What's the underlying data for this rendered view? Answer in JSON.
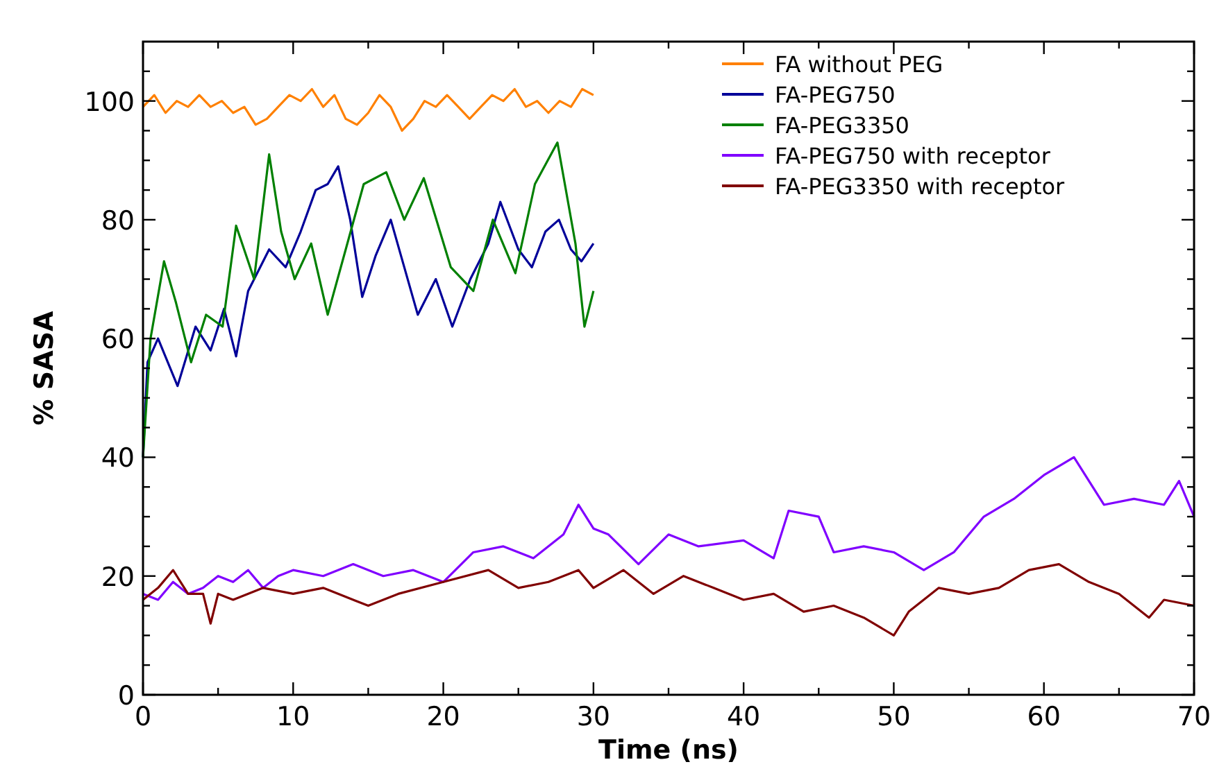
{
  "chart_data": {
    "type": "line",
    "xlabel": "Time (ns)",
    "ylabel": "% SASA",
    "xlim": [
      0,
      70
    ],
    "ylim": [
      0,
      110
    ],
    "xticks": [
      0,
      {
        "value": 5,
        "label": null
      },
      10,
      {
        "value": 15,
        "label": null
      },
      20,
      {
        "value": 25,
        "label": null
      },
      30,
      {
        "value": 35,
        "label": null
      },
      40,
      {
        "value": 45,
        "label": null
      },
      50,
      {
        "value": 55,
        "label": null
      },
      60,
      {
        "value": 65,
        "label": null
      },
      70
    ],
    "yticks": [
      0,
      {
        "value": 5,
        "label": null
      },
      {
        "value": 10,
        "label": null
      },
      {
        "value": 15,
        "label": null
      },
      20,
      {
        "value": 25,
        "label": null
      },
      {
        "value": 30,
        "label": null
      },
      {
        "value": 35,
        "label": null
      },
      40,
      {
        "value": 45,
        "label": null
      },
      {
        "value": 50,
        "label": null
      },
      {
        "value": 55,
        "label": null
      },
      60,
      {
        "value": 65,
        "label": null
      },
      {
        "value": 70,
        "label": null
      },
      {
        "value": 75,
        "label": null
      },
      80,
      {
        "value": 85,
        "label": null
      },
      {
        "value": 90,
        "label": null
      },
      {
        "value": 95,
        "label": null
      },
      100,
      {
        "value": 105,
        "label": null
      }
    ],
    "legend": "top right",
    "grid": false,
    "line_style": "solid",
    "series": [
      {
        "name": "FA without PEG",
        "color": "#ff8000",
        "x": [
          0,
          0.75,
          1.5,
          2.25,
          3,
          3.75,
          4.5,
          5.25,
          6,
          6.75,
          7.5,
          8.25,
          9,
          9.75,
          10.5,
          11.25,
          12,
          12.75,
          13.5,
          14.25,
          15,
          15.75,
          16.5,
          17.25,
          18,
          18.75,
          19.5,
          20.25,
          21,
          21.75,
          22.5,
          23.25,
          24,
          24.75,
          25.5,
          26.25,
          27,
          27.75,
          28.5,
          29.25,
          30
        ],
        "values": [
          99,
          101,
          98,
          100,
          99,
          101,
          99,
          100,
          98,
          99,
          96,
          97,
          99,
          101,
          100,
          102,
          99,
          101,
          97,
          96,
          98,
          101,
          99,
          95,
          97,
          100,
          99,
          101,
          99,
          97,
          99,
          101,
          100,
          102,
          99,
          100,
          98,
          100,
          99,
          102,
          101
        ]
      },
      {
        "name": "FA-PEG750",
        "color": "#000099",
        "x": [
          0,
          0.3,
          1,
          2.3,
          3.5,
          4.5,
          5.4,
          6.2,
          7,
          8.4,
          9.5,
          10.5,
          11.5,
          12.3,
          13,
          13.8,
          14.6,
          15.5,
          16.5,
          17.4,
          18.3,
          19.5,
          20.6,
          21.8,
          23,
          23.8,
          25,
          25.9,
          26.8,
          27.7,
          28.5,
          29.2,
          30
        ],
        "values": [
          40,
          56,
          60,
          52,
          62,
          58,
          65,
          57,
          68,
          75,
          72,
          78,
          85,
          86,
          89,
          80,
          67,
          74,
          80,
          72,
          64,
          70,
          62,
          70,
          76,
          83,
          75,
          72,
          78,
          80,
          75,
          73,
          76
        ]
      },
      {
        "name": "FA-PEG3350",
        "color": "#008000",
        "x": [
          0,
          0.5,
          1.4,
          2.2,
          3.2,
          4.2,
          5.3,
          6.2,
          7.4,
          8.4,
          9.2,
          10.1,
          11.2,
          12.3,
          13.5,
          14.7,
          16.2,
          17.4,
          18.7,
          20.5,
          22,
          23.3,
          24.8,
          26.1,
          27.6,
          28.8,
          29.4,
          30
        ],
        "values": [
          40,
          60,
          73,
          66,
          56,
          64,
          62,
          79,
          70,
          91,
          78,
          70,
          76,
          64,
          75,
          86,
          88,
          80,
          87,
          72,
          68,
          80,
          71,
          86,
          93,
          76,
          62,
          68
        ]
      },
      {
        "name": "FA-PEG750 with receptor",
        "color": "#8000ff",
        "x": [
          0,
          1,
          2,
          3,
          4,
          5,
          6,
          7,
          8,
          9,
          10,
          12,
          14,
          16,
          18,
          20,
          22,
          24,
          26,
          28,
          29,
          30,
          31,
          33,
          35,
          37,
          40,
          42,
          43,
          45,
          46,
          48,
          50,
          52,
          54,
          56,
          58,
          60,
          62,
          64,
          66,
          68,
          69,
          70
        ],
        "values": [
          17,
          16,
          19,
          17,
          18,
          20,
          19,
          21,
          18,
          20,
          21,
          20,
          22,
          20,
          21,
          19,
          24,
          25,
          23,
          27,
          32,
          28,
          27,
          22,
          27,
          25,
          26,
          23,
          31,
          30,
          24,
          25,
          24,
          21,
          24,
          30,
          33,
          37,
          40,
          32,
          33,
          32,
          36,
          30
        ]
      },
      {
        "name": "FA-PEG3350 with receptor",
        "color": "#800000",
        "x": [
          0,
          1,
          2,
          3,
          4,
          4.5,
          5,
          6,
          8,
          10,
          12,
          15,
          17,
          20,
          23,
          25,
          27,
          29,
          30,
          32,
          34,
          36,
          38,
          40,
          42,
          44,
          46,
          48,
          50,
          51,
          53,
          55,
          57,
          59,
          61,
          63,
          65,
          67,
          68,
          70
        ],
        "values": [
          16,
          18,
          21,
          17,
          17,
          12,
          17,
          16,
          18,
          17,
          18,
          15,
          17,
          19,
          21,
          18,
          19,
          21,
          18,
          21,
          17,
          20,
          18,
          16,
          17,
          14,
          15,
          13,
          10,
          14,
          18,
          17,
          18,
          21,
          22,
          19,
          17,
          13,
          16,
          15
        ]
      }
    ]
  }
}
